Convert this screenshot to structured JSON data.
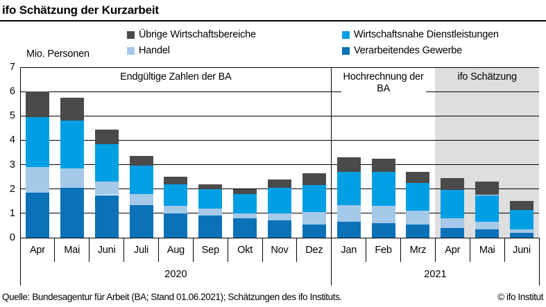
{
  "header": {
    "title": "ifo Schätzung der Kurzarbeit"
  },
  "axis_title": "Mio. Personen",
  "legend": [
    {
      "label": "Übrige Wirtschaftsbereiche",
      "color": "#4a4a4a"
    },
    {
      "label": "Wirtschaftsnahe Dienstleistungen",
      "color": "#009fe4"
    },
    {
      "label": "Handel",
      "color": "#a5c9e8"
    },
    {
      "label": "Verarbeitendes Gewerbe",
      "color": "#0c72b8"
    }
  ],
  "chart_data": {
    "type": "bar",
    "stacked": true,
    "title": "ifo Schätzung der Kurzarbeit",
    "ylabel": "Mio. Personen",
    "ylim": [
      0,
      7
    ],
    "yticks": [
      0,
      1,
      2,
      3,
      4,
      5,
      6,
      7
    ],
    "grid": true,
    "categories": [
      "Apr",
      "Mai",
      "Juni",
      "Juli",
      "Aug",
      "Sep",
      "Okt",
      "Nov",
      "Dez",
      "Jan",
      "Feb",
      "Mrz",
      "Apr",
      "Mai",
      "Juni"
    ],
    "year_groups": [
      {
        "label": "2020",
        "from": 0,
        "to": 8
      },
      {
        "label": "2021",
        "from": 9,
        "to": 14
      }
    ],
    "series": [
      {
        "name": "Verarbeitendes Gewerbe",
        "color": "#0c72b8",
        "values": [
          1.85,
          2.05,
          1.75,
          1.35,
          1.0,
          0.9,
          0.8,
          0.7,
          0.55,
          0.65,
          0.6,
          0.55,
          0.4,
          0.35,
          0.2
        ]
      },
      {
        "name": "Handel",
        "color": "#a5c9e8",
        "values": [
          1.05,
          0.8,
          0.55,
          0.45,
          0.3,
          0.3,
          0.2,
          0.3,
          0.5,
          0.7,
          0.7,
          0.55,
          0.4,
          0.3,
          0.15
        ]
      },
      {
        "name": "Wirtschaftsnahe Dienstleistungen",
        "color": "#009fe4",
        "values": [
          2.05,
          1.95,
          1.55,
          1.15,
          0.9,
          0.8,
          0.8,
          1.05,
          1.1,
          1.35,
          1.4,
          1.15,
          1.15,
          1.1,
          0.8
        ]
      },
      {
        "name": "Übrige Wirtschaftsbereiche",
        "color": "#4a4a4a",
        "values": [
          1.05,
          0.95,
          0.6,
          0.4,
          0.3,
          0.2,
          0.2,
          0.35,
          0.5,
          0.6,
          0.55,
          0.45,
          0.5,
          0.55,
          0.35
        ]
      }
    ],
    "annotations": [
      {
        "label": "Endgültige Zahlen der BA",
        "from": 0,
        "to": 8,
        "shaded": false,
        "wrap": false
      },
      {
        "label": "Hochrechnung der BA",
        "from": 9,
        "to": 11,
        "shaded": false,
        "wrap": true
      },
      {
        "label": "ifo Schätzung",
        "from": 12,
        "to": 14,
        "shaded": true,
        "wrap": false
      }
    ],
    "shade_color": "#dedede",
    "legend_position": "top"
  },
  "footer": {
    "source": "Quelle: Bundesagentur für Arbeit (BA; Stand 01.06.2021); Schätzungen des ifo Instituts.",
    "copyright": "© ifo Institut"
  }
}
